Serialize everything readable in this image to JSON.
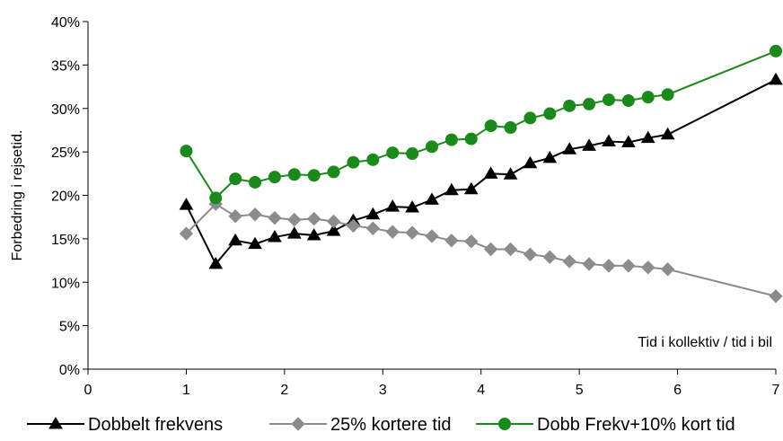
{
  "chart_data": {
    "type": "line",
    "title": "",
    "xlabel": "Tid i kollektiv / tid i bil",
    "ylabel": "Forbedring i rejsetid.",
    "xlim": [
      0,
      7
    ],
    "ylim": [
      0,
      0.4
    ],
    "x_ticks": [
      "0",
      "1",
      "2",
      "3",
      "4",
      "5",
      "6",
      "7"
    ],
    "y_ticks": [
      "0%",
      "5%",
      "10%",
      "15%",
      "20%",
      "25%",
      "30%",
      "35%",
      "40%"
    ],
    "grid": false,
    "legend_position": "bottom",
    "x": [
      1,
      1.3,
      1.5,
      1.7,
      1.9,
      2.1,
      2.3,
      2.5,
      2.7,
      2.9,
      3.1,
      3.3,
      3.5,
      3.7,
      3.9,
      4.1,
      4.3,
      4.5,
      4.7,
      4.9,
      5.1,
      5.3,
      5.5,
      5.7,
      5.9,
      7
    ],
    "series": [
      {
        "name": "Dobbelt frekvens",
        "color": "#000000",
        "marker": "triangle",
        "values": [
          0.189,
          0.121,
          0.148,
          0.144,
          0.152,
          0.156,
          0.154,
          0.159,
          0.171,
          0.178,
          0.187,
          0.186,
          0.195,
          0.206,
          0.207,
          0.225,
          0.224,
          0.237,
          0.243,
          0.253,
          0.257,
          0.262,
          0.261,
          0.266,
          0.27,
          0.333
        ]
      },
      {
        "name": "25% kortere tid",
        "color": "#8c8c8c",
        "marker": "diamond",
        "values": [
          0.156,
          0.19,
          0.176,
          0.178,
          0.174,
          0.172,
          0.173,
          0.17,
          0.165,
          0.162,
          0.158,
          0.157,
          0.153,
          0.148,
          0.147,
          0.138,
          0.138,
          0.132,
          0.129,
          0.124,
          0.121,
          0.119,
          0.119,
          0.117,
          0.115,
          0.084
        ]
      },
      {
        "name": "Dobb Frekv+10% kort tid",
        "color": "#1a8a1a",
        "marker": "circle",
        "values": [
          0.251,
          0.197,
          0.219,
          0.215,
          0.221,
          0.224,
          0.223,
          0.227,
          0.238,
          0.241,
          0.249,
          0.248,
          0.256,
          0.264,
          0.265,
          0.28,
          0.278,
          0.289,
          0.294,
          0.303,
          0.305,
          0.31,
          0.309,
          0.313,
          0.316,
          0.366
        ]
      }
    ]
  }
}
